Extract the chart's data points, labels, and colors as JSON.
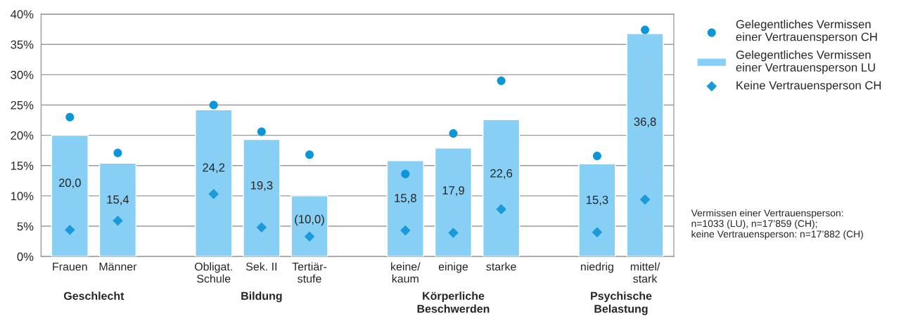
{
  "chart_data": {
    "type": "bar",
    "categories": [
      "Frauen",
      "Männer",
      null,
      "Obligat.\nSchule",
      "Sek. II",
      "Tertiär-\nstufe",
      null,
      "keine/\nkaum",
      "einige",
      "starke",
      null,
      "niedrig",
      "mittel/\nstark"
    ],
    "series": [
      {
        "name": "Gelegentliches Vermissen\neiner Vertrauensperson CH",
        "type": "scatter",
        "marker": "circle",
        "color": "#0a96d8",
        "values": [
          23.0,
          17.1,
          null,
          25.0,
          20.6,
          16.8,
          null,
          13.6,
          20.3,
          29.0,
          null,
          16.6,
          37.4
        ]
      },
      {
        "name": "Gelegentliches Vermissen\neiner Vertrauensperson LU",
        "color": "#88cff5",
        "values": [
          20.0,
          15.4,
          null,
          24.2,
          19.3,
          10.0,
          null,
          15.8,
          17.9,
          22.6,
          null,
          15.3,
          36.8
        ],
        "value_labels": [
          "20,0",
          "15,4",
          null,
          "24,2",
          "19,3",
          "(10,0)",
          null,
          "15,8",
          "17,9",
          "22,6",
          null,
          "15,3",
          "36,8"
        ]
      },
      {
        "name": "Keine Vertrauensperson CH",
        "type": "scatter",
        "marker": "diamond",
        "color": "#1a9ad8",
        "values": [
          4.4,
          5.9,
          null,
          10.3,
          4.8,
          3.3,
          null,
          4.3,
          3.9,
          7.8,
          null,
          4.0,
          9.4
        ]
      }
    ],
    "ylim": [
      0,
      40
    ],
    "yticks": [
      {
        "value": 0,
        "label": "0%"
      },
      {
        "value": 5,
        "label": "5%"
      },
      {
        "value": 10,
        "label": "10%"
      },
      {
        "value": 15,
        "label": "15%"
      },
      {
        "value": 20,
        "label": "20%"
      },
      {
        "value": 25,
        "label": "25%"
      },
      {
        "value": 30,
        "label": "30%"
      },
      {
        "value": 35,
        "label": "35%"
      },
      {
        "value": 40,
        "label": "40%"
      }
    ],
    "grid": "y",
    "legend": "top right",
    "annotations": [
      "Geschlecht",
      "Bildung",
      "Körperliche\nBeschwerden",
      "Psychische\nBelastung",
      "Vermissen einer Vertrauensperson:\nn=1033 (LU), n=17’859 (CH);\nkeine Vertrauensperson: n=17’882 (CH)"
    ]
  }
}
